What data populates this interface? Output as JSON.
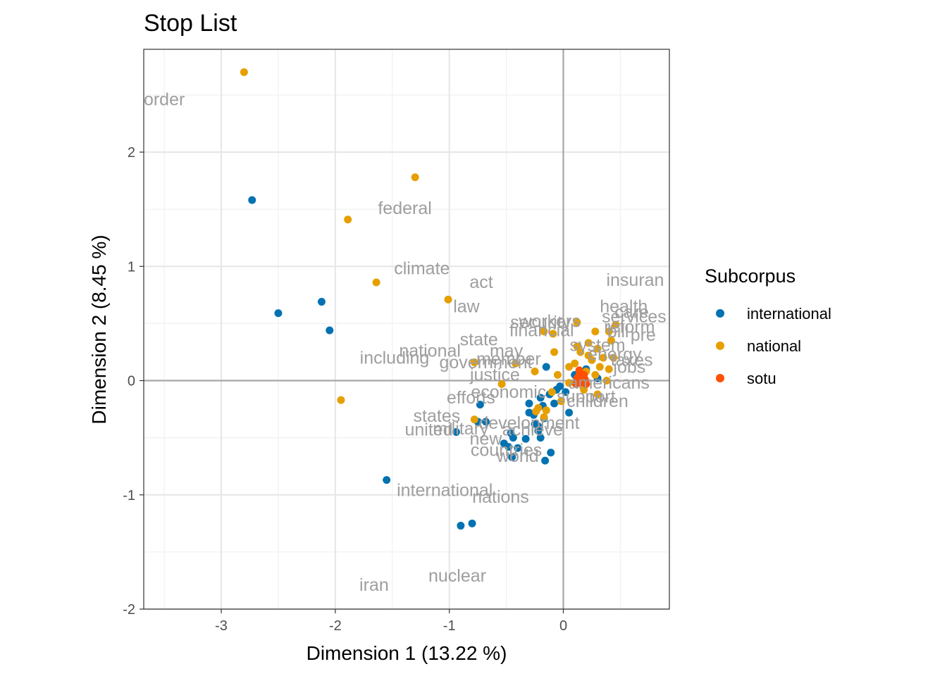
{
  "chart_data": {
    "type": "scatter",
    "title": "Stop List",
    "xlabel": "Dimension 1 (13.22 %)",
    "ylabel": "Dimension 2 (8.45 %)",
    "xlim": [
      -3.68,
      0.93
    ],
    "ylim": [
      -2.0,
      2.9
    ],
    "x_ticks": [
      -3,
      -2,
      -1,
      0
    ],
    "y_ticks": [
      -2,
      -1,
      0,
      1,
      2
    ],
    "grid": true,
    "reference_lines": {
      "x": 0,
      "y": 0
    },
    "legend": {
      "title": "Subcorpus",
      "position": "right",
      "entries": [
        {
          "name": "international",
          "color": "#0072B2"
        },
        {
          "name": "national",
          "color": "#E69F00"
        },
        {
          "name": "sotu",
          "color": "#FF4F00"
        }
      ]
    },
    "series": [
      {
        "name": "international",
        "color": "#0072B2",
        "points": [
          [
            -2.73,
            1.58
          ],
          [
            -2.5,
            0.59
          ],
          [
            -2.12,
            0.69
          ],
          [
            -2.05,
            0.44
          ],
          [
            -1.55,
            -0.87
          ],
          [
            -0.9,
            -1.27
          ],
          [
            -0.8,
            -1.25
          ],
          [
            -0.94,
            -0.45
          ],
          [
            -0.73,
            -0.21
          ],
          [
            -0.75,
            -0.36
          ],
          [
            -0.68,
            -0.36
          ],
          [
            -0.52,
            -0.55
          ],
          [
            -0.46,
            -0.46
          ],
          [
            -0.44,
            -0.5
          ],
          [
            -0.48,
            -0.58
          ],
          [
            -0.4,
            -0.59
          ],
          [
            -0.33,
            -0.51
          ],
          [
            -0.45,
            -0.67
          ],
          [
            -0.16,
            -0.7
          ],
          [
            -0.11,
            -0.63
          ],
          [
            -0.3,
            -0.28
          ],
          [
            -0.25,
            -0.38
          ],
          [
            -0.22,
            -0.44
          ],
          [
            -0.2,
            -0.5
          ],
          [
            -0.17,
            -0.33
          ],
          [
            -0.12,
            -0.12
          ],
          [
            -0.08,
            -0.2
          ],
          [
            -0.2,
            -0.15
          ],
          [
            -0.03,
            -0.05
          ],
          [
            0.05,
            -0.28
          ],
          [
            -0.26,
            -0.3
          ],
          [
            -0.18,
            -0.22
          ],
          [
            0.02,
            -0.1
          ],
          [
            -0.3,
            -0.2
          ],
          [
            -0.22,
            -0.4
          ],
          [
            0.1,
            0.05
          ],
          [
            -0.15,
            0.12
          ],
          [
            0.2,
            0.1
          ],
          [
            0.3,
            0.02
          ],
          [
            -0.06,
            -0.08
          ]
        ]
      },
      {
        "name": "national",
        "color": "#E69F00",
        "points": [
          [
            -2.8,
            2.7
          ],
          [
            -1.3,
            1.78
          ],
          [
            -1.89,
            1.41
          ],
          [
            -1.64,
            0.86
          ],
          [
            -1.01,
            0.71
          ],
          [
            -1.95,
            -0.17
          ],
          [
            -0.78,
            0.16
          ],
          [
            -0.54,
            -0.03
          ],
          [
            -0.42,
            0.15
          ],
          [
            -0.08,
            0.25
          ],
          [
            -0.17,
            0.43
          ],
          [
            -0.09,
            0.41
          ],
          [
            0.12,
            0.51
          ],
          [
            0.28,
            0.43
          ],
          [
            0.46,
            0.49
          ],
          [
            0.4,
            0.43
          ],
          [
            0.42,
            0.35
          ],
          [
            0.22,
            0.33
          ],
          [
            0.3,
            0.28
          ],
          [
            0.15,
            0.25
          ],
          [
            0.35,
            0.2
          ],
          [
            0.25,
            0.18
          ],
          [
            0.1,
            0.15
          ],
          [
            0.32,
            0.12
          ],
          [
            0.2,
            0.08
          ],
          [
            0.4,
            0.1
          ],
          [
            0.28,
            0.05
          ],
          [
            0.15,
            0.02
          ],
          [
            0.38,
            0.0
          ],
          [
            -0.25,
            0.08
          ],
          [
            -0.05,
            0.05
          ],
          [
            0.05,
            -0.02
          ],
          [
            -0.1,
            -0.1
          ],
          [
            -0.02,
            -0.18
          ],
          [
            -0.22,
            -0.24
          ],
          [
            -0.15,
            -0.26
          ],
          [
            -0.24,
            -0.27
          ],
          [
            -0.17,
            -0.32
          ],
          [
            -0.78,
            -0.34
          ],
          [
            0.3,
            -0.12
          ],
          [
            0.18,
            -0.08
          ],
          [
            0.22,
            0.22
          ],
          [
            0.12,
            0.3
          ],
          [
            0.05,
            0.12
          ],
          [
            0.44,
            0.2
          ]
        ]
      },
      {
        "name": "sotu",
        "color": "#FF4F00",
        "points": [
          [
            0.14,
            0.09
          ],
          [
            0.17,
            0.04
          ],
          [
            0.12,
            0.02
          ],
          [
            0.19,
            0.01
          ],
          [
            0.15,
            -0.02
          ],
          [
            0.2,
            -0.03
          ],
          [
            0.11,
            -0.03
          ],
          [
            0.17,
            0.0
          ],
          [
            0.14,
            0.05
          ],
          [
            0.18,
            0.05
          ]
        ]
      }
    ],
    "labels": [
      {
        "text": "order",
        "x": -3.5,
        "y": 2.45
      },
      {
        "text": "federal",
        "x": -1.39,
        "y": 1.5
      },
      {
        "text": "climate",
        "x": -1.24,
        "y": 0.97
      },
      {
        "text": "act",
        "x": -0.72,
        "y": 0.85
      },
      {
        "text": "law",
        "x": -0.85,
        "y": 0.64
      },
      {
        "text": "insuran",
        "x": 0.63,
        "y": 0.87
      },
      {
        "text": "health",
        "x": 0.53,
        "y": 0.64
      },
      {
        "text": "care",
        "x": 0.6,
        "y": 0.59
      },
      {
        "text": "services",
        "x": 0.62,
        "y": 0.55
      },
      {
        "text": "security",
        "x": -0.2,
        "y": 0.5
      },
      {
        "text": "workers",
        "x": -0.12,
        "y": 0.51
      },
      {
        "text": "financial",
        "x": -0.19,
        "y": 0.43
      },
      {
        "text": "reform",
        "x": 0.58,
        "y": 0.46
      },
      {
        "text": "bill",
        "x": 0.48,
        "y": 0.42
      },
      {
        "text": "state",
        "x": -0.74,
        "y": 0.35
      },
      {
        "text": "system",
        "x": 0.3,
        "y": 0.3
      },
      {
        "text": "pre",
        "x": 0.7,
        "y": 0.39
      },
      {
        "text": "national",
        "x": -1.17,
        "y": 0.25
      },
      {
        "text": "may",
        "x": -0.5,
        "y": 0.25
      },
      {
        "text": "member",
        "x": -0.48,
        "y": 0.18
      },
      {
        "text": "including",
        "x": -1.48,
        "y": 0.19
      },
      {
        "text": "government",
        "x": -0.68,
        "y": 0.15
      },
      {
        "text": "energy",
        "x": 0.45,
        "y": 0.22
      },
      {
        "text": "taxes",
        "x": 0.6,
        "y": 0.17
      },
      {
        "text": "jobs",
        "x": 0.58,
        "y": 0.11
      },
      {
        "text": "justice",
        "x": -0.6,
        "y": 0.04
      },
      {
        "text": "americans",
        "x": 0.4,
        "y": -0.03
      },
      {
        "text": "economic",
        "x": -0.48,
        "y": -0.11
      },
      {
        "text": "efforts",
        "x": -0.81,
        "y": -0.16
      },
      {
        "text": "support",
        "x": 0.2,
        "y": -0.15
      },
      {
        "text": "children",
        "x": 0.3,
        "y": -0.19
      },
      {
        "text": "states",
        "x": -1.11,
        "y": -0.32
      },
      {
        "text": "united",
        "x": -1.18,
        "y": -0.44
      },
      {
        "text": "military",
        "x": -0.9,
        "y": -0.43
      },
      {
        "text": "development",
        "x": -0.3,
        "y": -0.38
      },
      {
        "text": "achieve",
        "x": -0.27,
        "y": -0.44
      },
      {
        "text": "new",
        "x": -0.68,
        "y": -0.52
      },
      {
        "text": "countries",
        "x": -0.5,
        "y": -0.62
      },
      {
        "text": "world",
        "x": -0.4,
        "y": -0.67
      },
      {
        "text": "international",
        "x": -1.04,
        "y": -0.97
      },
      {
        "text": "nations",
        "x": -0.55,
        "y": -1.03
      },
      {
        "text": "nuclear",
        "x": -0.93,
        "y": -1.72
      },
      {
        "text": "iran",
        "x": -1.66,
        "y": -1.8
      }
    ]
  }
}
